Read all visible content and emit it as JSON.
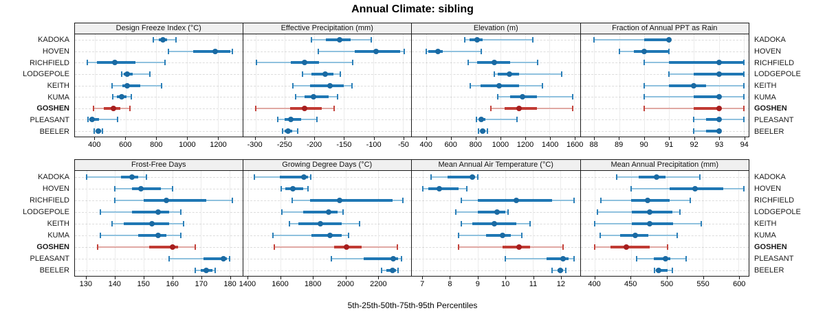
{
  "title": "Annual Climate: sibling",
  "footer": "5th-25th-50th-75th-95th Percentiles",
  "locations": [
    "KADOKA",
    "HOVEN",
    "RICHFIELD",
    "LODGEPOLE",
    "KEITH",
    "KUMA",
    "GOSHEN",
    "PLEASANT",
    "BEELER"
  ],
  "highlight_location": "GOSHEN",
  "percentiles": [
    5,
    25,
    50,
    75,
    95
  ],
  "colors": {
    "normal": {
      "dot": "#1a6aa3",
      "band": "#1f77b4",
      "whisker": "#8fc1de",
      "cap": "#2b7fb8"
    },
    "highlight": {
      "dot": "#a61e1e",
      "band": "#c13b34",
      "whisker": "#e0a8a3",
      "cap": "#c4433c"
    },
    "header_bg": "#f0f0f0",
    "grid": "#d8d8d8",
    "border": "#1a1a1a"
  },
  "chart_data": [
    {
      "type": "scatter",
      "subtype": "percentile-interval-dotplot",
      "title": "Design Freeze Index (°C)",
      "xlim": [
        270,
        1360
      ],
      "xticks": [
        400,
        600,
        800,
        1000,
        1200
      ],
      "series": [
        {
          "name": "KADOKA",
          "values": [
            780,
            815,
            845,
            870,
            930
          ]
        },
        {
          "name": "HOVEN",
          "values": [
            880,
            1040,
            1185,
            1280,
            1295
          ]
        },
        {
          "name": "RICHFIELD",
          "values": [
            350,
            415,
            530,
            665,
            855
          ]
        },
        {
          "name": "LODGEPOLE",
          "values": [
            575,
            590,
            612,
            645,
            760
          ]
        },
        {
          "name": "KEITH",
          "values": [
            510,
            580,
            612,
            695,
            835
          ]
        },
        {
          "name": "KUMA",
          "values": [
            515,
            545,
            575,
            605,
            635
          ]
        },
        {
          "name": "GOSHEN",
          "values": [
            390,
            460,
            520,
            565,
            630
          ]
        },
        {
          "name": "PLEASANT",
          "values": [
            355,
            365,
            380,
            425,
            548
          ]
        },
        {
          "name": "BEELER",
          "values": [
            395,
            408,
            420,
            438,
            447
          ]
        }
      ]
    },
    {
      "type": "scatter",
      "subtype": "percentile-interval-dotplot",
      "title": "Effective Precipitation (mm)",
      "xlim": [
        -321,
        -36
      ],
      "xticks": [
        -300,
        -250,
        -200,
        -150,
        -100,
        -50
      ],
      "series": [
        {
          "name": "KADOKA",
          "values": [
            -205,
            -180,
            -157,
            -139,
            -104
          ]
        },
        {
          "name": "HOVEN",
          "values": [
            -193,
            -132,
            -96,
            -55,
            -48
          ]
        },
        {
          "name": "RICHFIELD",
          "values": [
            -298,
            -240,
            -217,
            -192,
            -135
          ]
        },
        {
          "name": "LODGEPOLE",
          "values": [
            -220,
            -205,
            -182,
            -168,
            -156
          ]
        },
        {
          "name": "KEITH",
          "values": [
            -236,
            -207,
            -174,
            -150,
            -136
          ]
        },
        {
          "name": "KUMA",
          "values": [
            -232,
            -217,
            -201,
            -176,
            -161
          ]
        },
        {
          "name": "GOSHEN",
          "values": [
            -300,
            -241,
            -217,
            -187,
            -166
          ]
        },
        {
          "name": "PLEASANT",
          "values": [
            -262,
            -250,
            -240,
            -222,
            -196
          ]
        },
        {
          "name": "BEELER",
          "values": [
            -254,
            -250,
            -245,
            -238,
            -228
          ]
        }
      ]
    },
    {
      "type": "scatter",
      "subtype": "percentile-interval-dotplot",
      "title": "Elevation (m)",
      "xlim": [
        280,
        1646
      ],
      "xticks": [
        400,
        600,
        800,
        1000,
        1200,
        1400,
        1600
      ],
      "series": [
        {
          "name": "KADOKA",
          "values": [
            710,
            748,
            808,
            858,
            1262
          ]
        },
        {
          "name": "HOVEN",
          "values": [
            395,
            412,
            490,
            532,
            845
          ]
        },
        {
          "name": "RICHFIELD",
          "values": [
            737,
            810,
            948,
            1080,
            1302
          ]
        },
        {
          "name": "LODGEPOLE",
          "values": [
            948,
            978,
            1072,
            1152,
            1497
          ]
        },
        {
          "name": "KEITH",
          "values": [
            755,
            840,
            988,
            1150,
            1340
          ]
        },
        {
          "name": "KUMA",
          "values": [
            978,
            1080,
            1182,
            1295,
            1590
          ]
        },
        {
          "name": "GOSHEN",
          "values": [
            922,
            1032,
            1152,
            1295,
            1590
          ]
        },
        {
          "name": "PLEASANT",
          "values": [
            807,
            826,
            847,
            876,
            1135
          ]
        },
        {
          "name": "BEELER",
          "values": [
            820,
            838,
            856,
            876,
            894
          ]
        }
      ]
    },
    {
      "type": "scatter",
      "subtype": "percentile-interval-dotplot",
      "title": "Fraction of Annual PPT as Rain",
      "xlim": [
        87.45,
        94.2
      ],
      "xticks": [
        88,
        89,
        90,
        91,
        92,
        93,
        94
      ],
      "series": [
        {
          "name": "KADOKA",
          "values": [
            88,
            90,
            91,
            91,
            91
          ]
        },
        {
          "name": "HOVEN",
          "values": [
            89,
            89.6,
            90,
            91,
            91
          ]
        },
        {
          "name": "RICHFIELD",
          "values": [
            90,
            91,
            93,
            94,
            94
          ]
        },
        {
          "name": "LODGEPOLE",
          "values": [
            91,
            92,
            93,
            94,
            94
          ]
        },
        {
          "name": "KEITH",
          "values": [
            90,
            91,
            92,
            92.5,
            94
          ]
        },
        {
          "name": "KUMA",
          "values": [
            90,
            92,
            93,
            93,
            94
          ]
        },
        {
          "name": "GOSHEN",
          "values": [
            90,
            92,
            93,
            93,
            94
          ]
        },
        {
          "name": "PLEASANT",
          "values": [
            92,
            92.5,
            93,
            93,
            94
          ]
        },
        {
          "name": "BEELER",
          "values": [
            92,
            92.5,
            93,
            93,
            93
          ]
        }
      ]
    },
    {
      "type": "scatter",
      "subtype": "percentile-interval-dotplot",
      "title": "Frost-Free Days",
      "xlim": [
        126,
        184.5
      ],
      "xticks": [
        130,
        140,
        150,
        160,
        170,
        180
      ],
      "series": [
        {
          "name": "KADOKA",
          "values": [
            130,
            142,
            146,
            148,
            151
          ]
        },
        {
          "name": "HOVEN",
          "values": [
            140,
            146,
            149,
            156,
            160
          ]
        },
        {
          "name": "RICHFIELD",
          "values": [
            140,
            150,
            158,
            172,
            181
          ]
        },
        {
          "name": "LODGEPOLE",
          "values": [
            135,
            146,
            155,
            159,
            163
          ]
        },
        {
          "name": "KEITH",
          "values": [
            139,
            143,
            153,
            159,
            164
          ]
        },
        {
          "name": "KUMA",
          "values": [
            135,
            148,
            155,
            158,
            163
          ]
        },
        {
          "name": "GOSHEN",
          "values": [
            134,
            152,
            160,
            162,
            168
          ]
        },
        {
          "name": "PLEASANT",
          "values": [
            159,
            171,
            178,
            179,
            180
          ]
        },
        {
          "name": "BEELER",
          "values": [
            168,
            170,
            172,
            174,
            175
          ]
        }
      ]
    },
    {
      "type": "scatter",
      "subtype": "percentile-interval-dotplot",
      "title": "Growing Degree Days (°C)",
      "xlim": [
        1369,
        2404
      ],
      "xticks": [
        1400,
        1600,
        1800,
        2000,
        2200
      ],
      "series": [
        {
          "name": "KADOKA",
          "values": [
            1440,
            1595,
            1745,
            1768,
            1785
          ]
        },
        {
          "name": "HOVEN",
          "values": [
            1605,
            1630,
            1675,
            1740,
            1770
          ]
        },
        {
          "name": "RICHFIELD",
          "values": [
            1670,
            1780,
            1965,
            2290,
            2355
          ]
        },
        {
          "name": "LODGEPOLE",
          "values": [
            1610,
            1740,
            1895,
            1950,
            1985
          ]
        },
        {
          "name": "KEITH",
          "values": [
            1655,
            1710,
            1845,
            1975,
            2085
          ]
        },
        {
          "name": "KUMA",
          "values": [
            1555,
            1790,
            1905,
            1975,
            2020
          ]
        },
        {
          "name": "GOSHEN",
          "values": [
            1560,
            1930,
            2005,
            2100,
            2320
          ]
        },
        {
          "name": "PLEASANT",
          "values": [
            1915,
            2110,
            2295,
            2325,
            2345
          ]
        },
        {
          "name": "BEELER",
          "values": [
            2220,
            2250,
            2290,
            2312,
            2325
          ]
        }
      ]
    },
    {
      "type": "scatter",
      "subtype": "percentile-interval-dotplot",
      "title": "Mean Annual Air Temperature (°C)",
      "xlim": [
        6.6,
        12.71
      ],
      "xticks": [
        7,
        8,
        9,
        10,
        11,
        12
      ],
      "series": [
        {
          "name": "KADOKA",
          "values": [
            7.3,
            7.9,
            8.8,
            8.9,
            9.0
          ]
        },
        {
          "name": "HOVEN",
          "values": [
            7.0,
            7.2,
            7.6,
            8.3,
            8.6
          ]
        },
        {
          "name": "RICHFIELD",
          "values": [
            8.4,
            9.0,
            10.4,
            11.7,
            12.5
          ]
        },
        {
          "name": "LODGEPOLE",
          "values": [
            8.2,
            9.0,
            9.7,
            10.0,
            10.1
          ]
        },
        {
          "name": "KEITH",
          "values": [
            8.4,
            8.8,
            9.6,
            10.4,
            10.9
          ]
        },
        {
          "name": "KUMA",
          "values": [
            8.3,
            9.3,
            9.9,
            10.2,
            10.6
          ]
        },
        {
          "name": "GOSHEN",
          "values": [
            8.3,
            9.9,
            10.5,
            10.9,
            12.1
          ]
        },
        {
          "name": "PLEASANT",
          "values": [
            10.0,
            11.5,
            12.1,
            12.3,
            12.5
          ]
        },
        {
          "name": "BEELER",
          "values": [
            11.7,
            11.9,
            12.0,
            12.1,
            12.2
          ]
        }
      ]
    },
    {
      "type": "scatter",
      "subtype": "percentile-interval-dotplot",
      "title": "Mean Annual Precipitation (mm)",
      "xlim": [
        380,
        614
      ],
      "xticks": [
        400,
        450,
        500,
        550,
        600
      ],
      "series": [
        {
          "name": "KADOKA",
          "values": [
            430,
            461,
            486,
            498,
            546
          ]
        },
        {
          "name": "HOVEN",
          "values": [
            450,
            504,
            539,
            579,
            607
          ]
        },
        {
          "name": "RICHFIELD",
          "values": [
            408,
            450,
            473,
            504,
            533
          ]
        },
        {
          "name": "LODGEPOLE",
          "values": [
            403,
            451,
            476,
            508,
            518
          ]
        },
        {
          "name": "KEITH",
          "values": [
            400,
            451,
            476,
            509,
            548
          ]
        },
        {
          "name": "KUMA",
          "values": [
            407,
            435,
            456,
            474,
            514
          ]
        },
        {
          "name": "GOSHEN",
          "values": [
            400,
            422,
            444,
            476,
            501
          ]
        },
        {
          "name": "PLEASANT",
          "values": [
            458,
            482,
            498,
            505,
            527
          ]
        },
        {
          "name": "BEELER",
          "values": [
            483,
            485,
            489,
            501,
            508
          ]
        }
      ]
    }
  ]
}
